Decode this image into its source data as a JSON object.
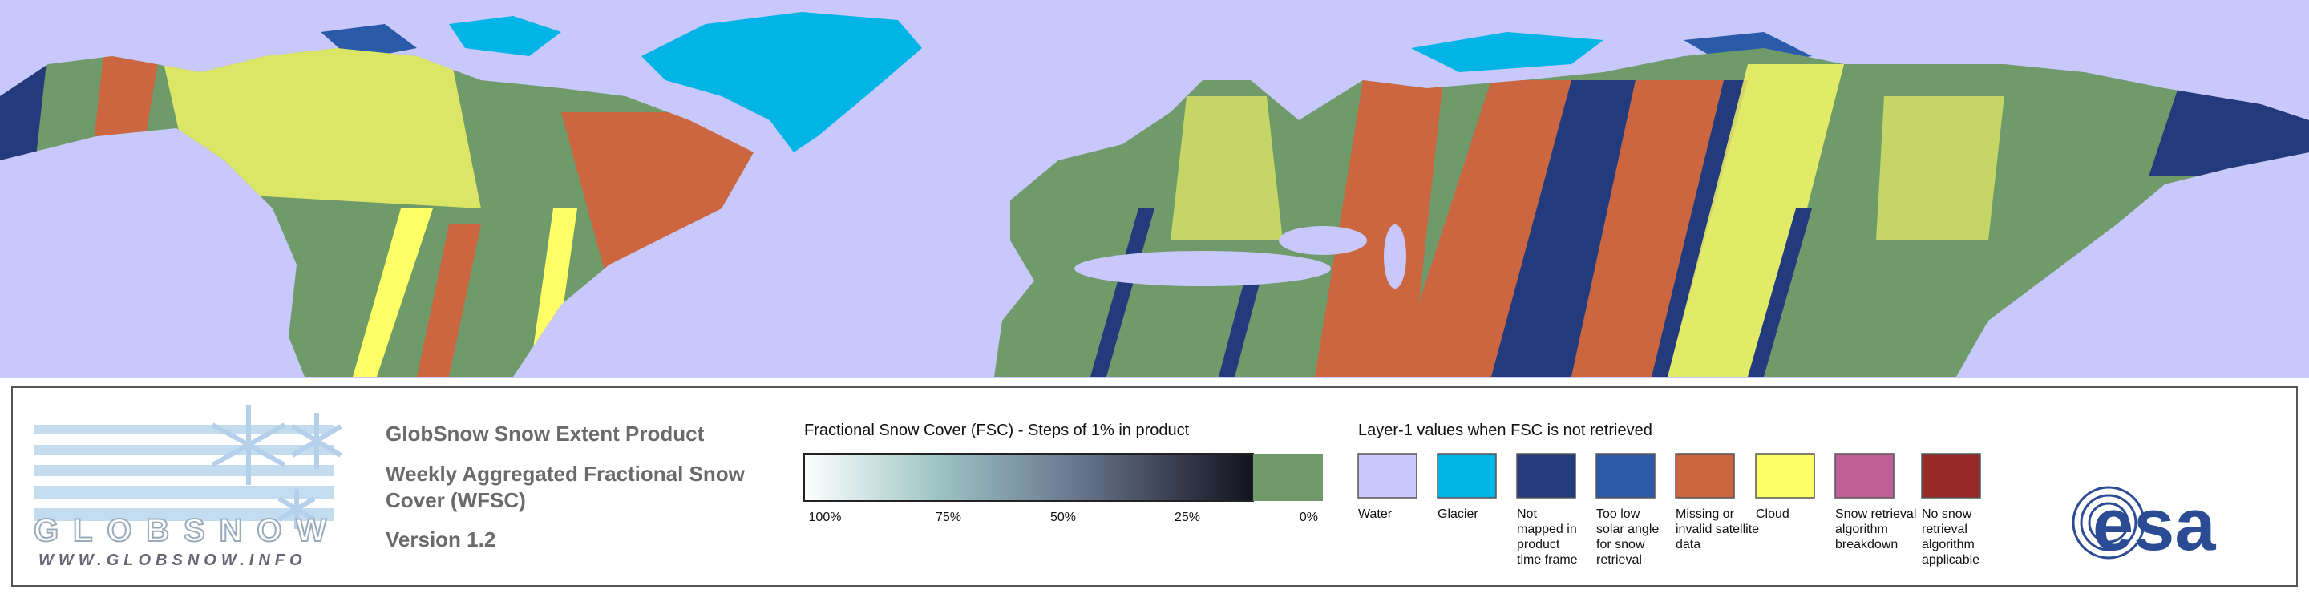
{
  "header": {
    "title": "GlobSnow Snow Extent Product",
    "subtitle_lines": [
      "Weekly Aggregated Fractional Snow",
      "Cover (WFSC)"
    ],
    "version": "Version 1.2"
  },
  "logo": {
    "name": "GLOBSNOW",
    "url": "WWW.GLOBSNOW.INFO"
  },
  "fsc_legend": {
    "title": "Fractional Snow Cover (FSC) - Steps of 1% in product",
    "ticks": [
      "100%",
      "75%",
      "50%",
      "25%",
      "0%"
    ]
  },
  "layer1_legend": {
    "title": "Layer-1 values when FSC is not retrieved",
    "items": [
      {
        "lines": [
          "Water"
        ],
        "color": "#c8c8fc"
      },
      {
        "lines": [
          "Glacier"
        ],
        "color": "#00b4e6"
      },
      {
        "lines": [
          "Not",
          "mapped in",
          "product",
          "time frame"
        ],
        "color": "#233a7c"
      },
      {
        "lines": [
          "Too low",
          "solar angle",
          "for snow",
          "retrieval"
        ],
        "color": "#2a5aa8"
      },
      {
        "lines": [
          "Missing or",
          "invalid satellite",
          "data"
        ],
        "color": "#cc6640"
      },
      {
        "lines": [
          "Cloud"
        ],
        "color": "#ffff66"
      },
      {
        "lines": [
          "Snow retrieval",
          "algorithm",
          "breakdown"
        ],
        "color": "#c0609a"
      },
      {
        "lines": [
          "No snow",
          "retrieval",
          "algorithm",
          "applicable"
        ],
        "color": "#9a2a2a"
      }
    ]
  },
  "agency_logo": "esa"
}
